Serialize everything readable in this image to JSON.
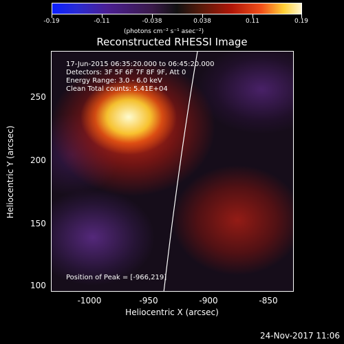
{
  "colorbar": {
    "ticks": [
      "-0.19",
      "-0.11",
      "-0.038",
      "0.038",
      "0.11",
      "0.19"
    ],
    "units": "(photons cm⁻² s⁻¹ asec⁻²)"
  },
  "title": "Reconstructed RHESSI Image",
  "info": {
    "line1": "17-Jun-2015 06:35:20.000 to 06:45:20.000",
    "line2": "Detectors: 3F 5F 6F 7F 8F 9F, Att 0",
    "line3": "Energy Range: 3.0 - 6.0 keV",
    "line4": "Clean      Total counts: 5.41E+04",
    "peak": "Position of Peak = [-966,219]"
  },
  "axes": {
    "x_label": "Heliocentric X (arcsec)",
    "y_label": "Heliocentric Y (arcsec)",
    "x_ticks": [
      "-1000",
      "-950",
      "-900",
      "-850"
    ],
    "y_ticks": [
      "250",
      "200",
      "150",
      "100"
    ]
  },
  "date": "24-Nov-2017 11:06"
}
